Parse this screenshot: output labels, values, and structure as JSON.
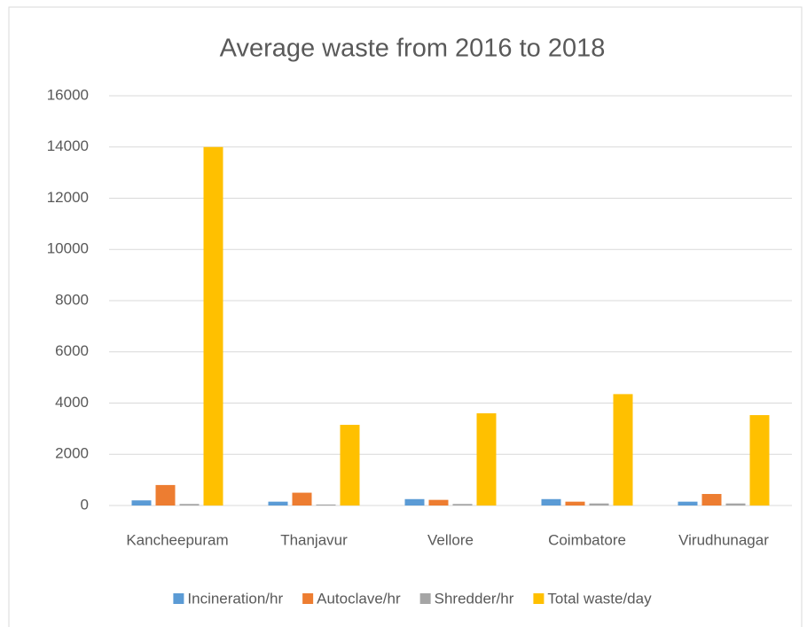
{
  "chart_data": {
    "type": "bar",
    "title": "Average waste from 2016 to 2018",
    "categories": [
      "Kancheepuram",
      "Thanjavur",
      "Vellore",
      "Coimbatore",
      "Virudhunagar"
    ],
    "series": [
      {
        "name": "Incineration/hr",
        "color": "#5b9bd5",
        "values": [
          200,
          150,
          250,
          250,
          150
        ]
      },
      {
        "name": "Autoclave/hr",
        "color": "#ed7d31",
        "values": [
          800,
          500,
          220,
          150,
          450
        ]
      },
      {
        "name": "Shredder/hr",
        "color": "#a5a5a5",
        "values": [
          60,
          40,
          60,
          80,
          80
        ]
      },
      {
        "name": "Total waste/day",
        "color": "#ffc000",
        "values": [
          14000,
          3150,
          3600,
          4350,
          3530
        ]
      }
    ],
    "ylim": [
      0,
      16000
    ],
    "yticks": [
      0,
      2000,
      4000,
      6000,
      8000,
      10000,
      12000,
      14000,
      16000
    ],
    "grid": true,
    "legend": "bottom"
  }
}
